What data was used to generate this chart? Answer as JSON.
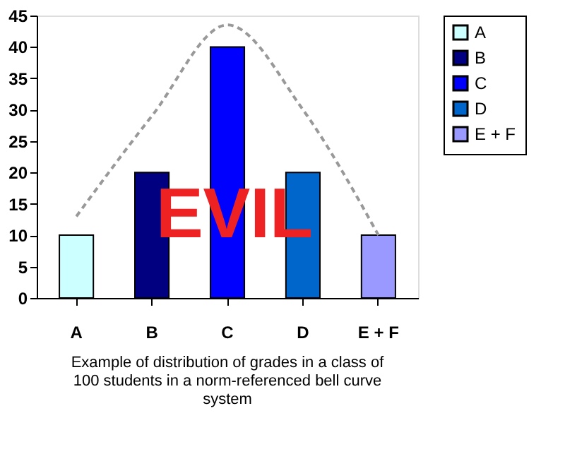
{
  "chart_data": {
    "type": "bar",
    "title": "Example of distribution of grades in a class of 100 students in a norm-referenced bell curve system",
    "categories": [
      "A",
      "B",
      "C",
      "D",
      "E + F"
    ],
    "series": [
      {
        "name": "A",
        "color": "#ccffff",
        "values": [
          10,
          null,
          null,
          null,
          null
        ]
      },
      {
        "name": "B",
        "color": "#000080",
        "values": [
          null,
          20,
          null,
          null,
          null
        ]
      },
      {
        "name": "C",
        "color": "#0000ff",
        "values": [
          null,
          null,
          40,
          null,
          null
        ]
      },
      {
        "name": "D",
        "color": "#0066cc",
        "values": [
          null,
          null,
          null,
          20,
          null
        ]
      },
      {
        "name": "E + F",
        "color": "#9999ff",
        "values": [
          null,
          null,
          null,
          null,
          10
        ]
      },
      {
        "type": "line",
        "color": "#999999",
        "line_style": "dashed",
        "marker": "none",
        "values": [
          13,
          29,
          43.5,
          30,
          10
        ]
      }
    ],
    "ylim": [
      0,
      45
    ],
    "yticks": [
      0,
      5,
      10,
      15,
      20,
      25,
      30,
      35,
      40,
      45
    ],
    "grid": false,
    "legend": "right",
    "annotations": [
      "EVIL"
    ]
  }
}
